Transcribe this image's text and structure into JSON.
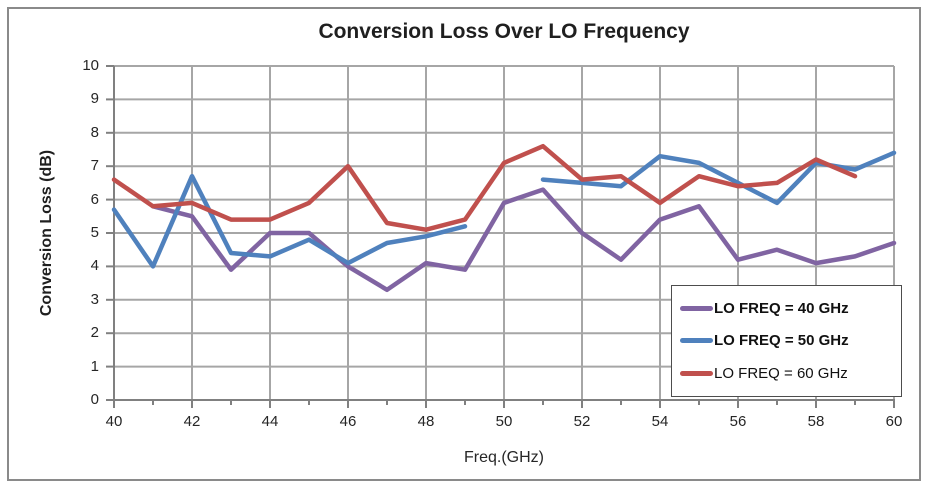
{
  "title": "Conversion Loss Over LO Frequency",
  "x_axis": {
    "label": "Freq.(GHz)",
    "min": 40,
    "max": 60,
    "tick_labels": [
      40,
      42,
      44,
      46,
      48,
      50,
      52,
      54,
      56,
      58,
      60
    ]
  },
  "y_axis": {
    "label": "Conversion Loss (dB)",
    "min": 0,
    "max": 10,
    "tick_labels": [
      0,
      1,
      2,
      3,
      4,
      5,
      6,
      7,
      8,
      9,
      10
    ]
  },
  "colors": {
    "gridline": "#a6a6a6",
    "axis": "#808080",
    "text": "#262626",
    "legend_border": "#4d4d4d",
    "series_purple": "#8064A2",
    "series_blue": "#4F81BD",
    "series_red": "#C0504D"
  },
  "chart_data": {
    "type": "line",
    "title": "Conversion Loss Over LO Frequency",
    "xlabel": "Freq.(GHz)",
    "ylabel": "Conversion Loss (dB)",
    "xlim": [
      40,
      60
    ],
    "ylim": [
      0,
      10
    ],
    "grid": true,
    "legend_position": "inside-right",
    "x": [
      40,
      41,
      42,
      43,
      44,
      45,
      46,
      47,
      48,
      49,
      50,
      51,
      52,
      53,
      54,
      55,
      56,
      57,
      58,
      59,
      60
    ],
    "series": [
      {
        "name": "LO FREQ = 40 GHz",
        "color": "#8064A2",
        "values": [
          null,
          5.8,
          5.5,
          3.9,
          5.0,
          5.0,
          4.0,
          3.3,
          4.1,
          3.9,
          5.9,
          6.3,
          5.0,
          4.2,
          5.4,
          5.8,
          4.2,
          4.5,
          4.1,
          4.3,
          4.7
        ]
      },
      {
        "name": "LO FREQ = 50 GHz",
        "color": "#4F81BD",
        "values": [
          5.7,
          4.0,
          6.7,
          4.4,
          4.3,
          4.8,
          4.1,
          4.7,
          4.9,
          5.2,
          null,
          6.6,
          6.5,
          6.4,
          7.3,
          7.1,
          6.5,
          5.9,
          7.1,
          6.9,
          7.4
        ]
      },
      {
        "name": "LO FREQ = 60 GHz",
        "color": "#C0504D",
        "values": [
          6.6,
          5.8,
          5.9,
          5.4,
          5.4,
          5.9,
          7.0,
          5.3,
          5.1,
          5.4,
          7.1,
          7.6,
          6.6,
          6.7,
          5.9,
          6.7,
          6.4,
          6.5,
          7.2,
          6.7,
          null
        ]
      }
    ]
  }
}
